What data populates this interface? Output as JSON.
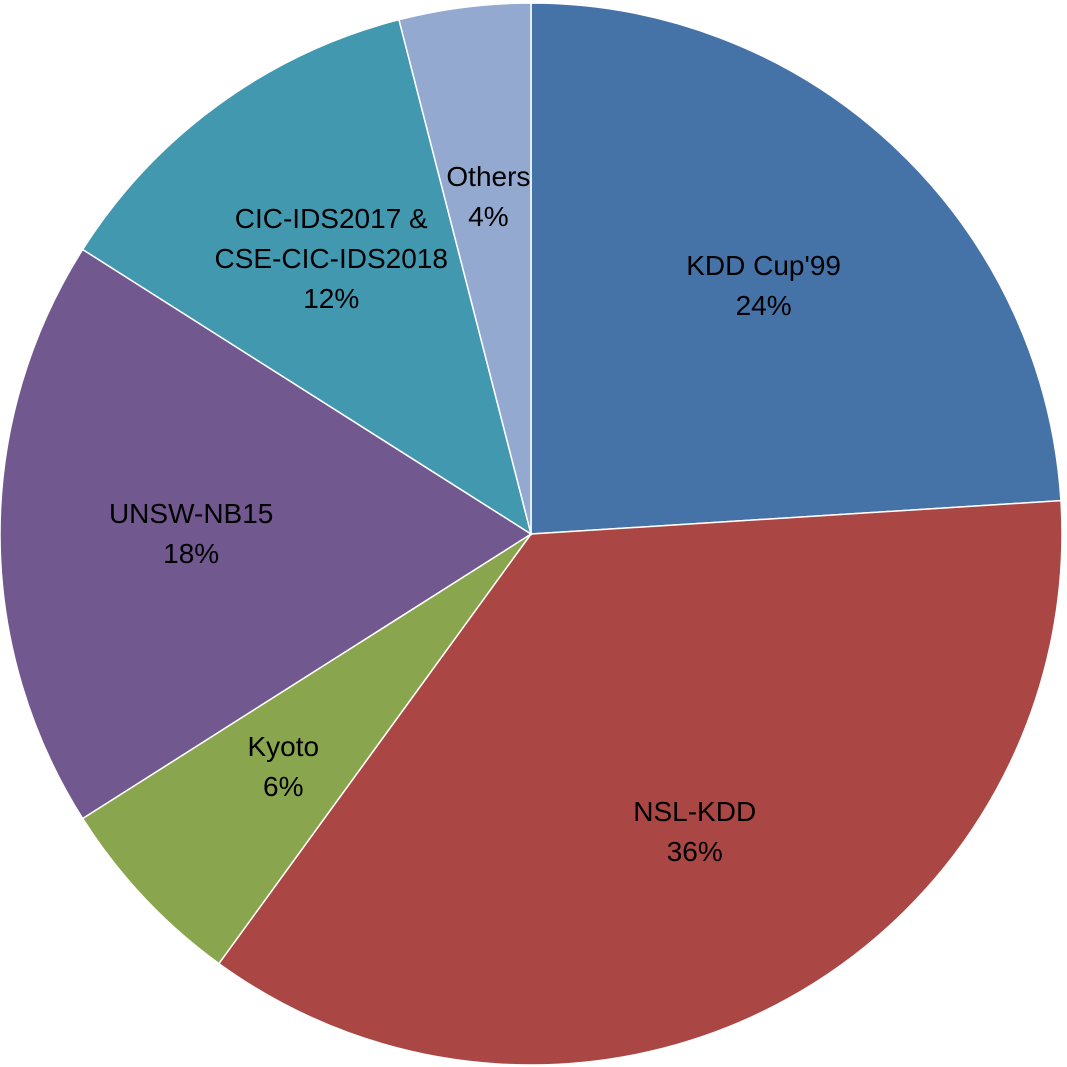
{
  "chart_data": {
    "type": "pie",
    "categories": [
      "KDD Cup'99",
      "NSL-KDD",
      "Kyoto",
      "UNSW-NB15",
      "CIC-IDS2017 & CSE-CIC-IDS2018",
      "Others"
    ],
    "values": [
      24,
      36,
      6,
      18,
      12,
      4
    ],
    "value_labels": [
      "24%",
      "36%",
      "6%",
      "18%",
      "12%",
      "4%"
    ],
    "colors": [
      "#4572a7",
      "#aa4643",
      "#89a54e",
      "#71588f",
      "#4198af",
      "#93a9cf"
    ]
  }
}
